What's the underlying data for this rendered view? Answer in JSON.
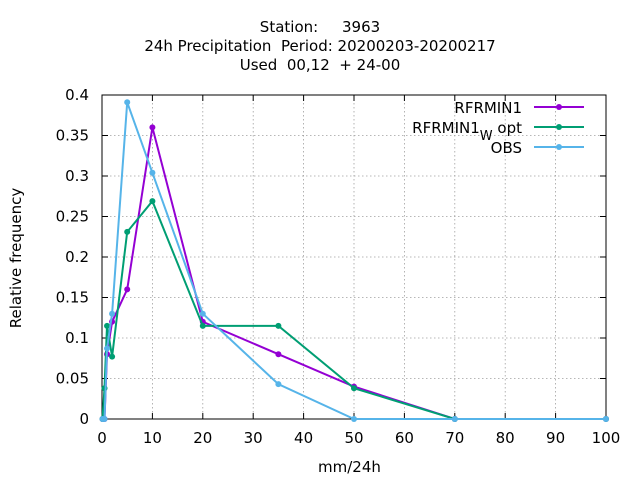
{
  "title_lines": [
    "Station:     3963",
    "24h Precipitation  Period: 20200203-20200217",
    "Used  00,12  + 24-00"
  ],
  "chart_data": {
    "type": "line",
    "xlabel": "mm/24h",
    "ylabel": "Relative frequency",
    "xlim": [
      0,
      100
    ],
    "ylim": [
      0,
      0.4
    ],
    "x_ticks": [
      0,
      10,
      20,
      30,
      40,
      50,
      60,
      70,
      80,
      90,
      100
    ],
    "y_ticks": [
      0,
      0.05,
      0.1,
      0.15,
      0.2,
      0.25,
      0.3,
      0.35,
      0.4
    ],
    "x_tick_labels": [
      "0",
      "10",
      "20",
      "30",
      "40",
      "50",
      "60",
      "70",
      "80",
      "90",
      "100"
    ],
    "y_tick_labels": [
      "0",
      "0.05",
      "0.1",
      "0.15",
      "0.2",
      "0.25",
      "0.3",
      "0.35",
      "0.4"
    ],
    "grid": true,
    "legend_position": "top-right",
    "series": [
      {
        "name": "RFRMIN1",
        "color": "#9400d3",
        "x": [
          0.1,
          0.5,
          1,
          2,
          5,
          10,
          20,
          35,
          50,
          70,
          100
        ],
        "y": [
          0.0,
          0.0,
          0.08,
          0.12,
          0.16,
          0.36,
          0.12,
          0.08,
          0.04,
          0.0,
          0.0
        ]
      },
      {
        "name": "RFRMIN1",
        "name_subscript": "W",
        "name_suffix": "opt",
        "color": "#009e73",
        "x": [
          0.1,
          0.5,
          1,
          2,
          5,
          10,
          20,
          35,
          50,
          70,
          100
        ],
        "y": [
          0.0,
          0.038,
          0.115,
          0.077,
          0.231,
          0.269,
          0.115,
          0.115,
          0.038,
          0.0,
          0.0
        ]
      },
      {
        "name": "OBS",
        "color": "#56b4e9",
        "x": [
          0.1,
          0.5,
          1,
          2,
          5,
          10,
          20,
          35,
          50,
          70,
          100
        ],
        "y": [
          0.0,
          0.0,
          0.087,
          0.13,
          0.391,
          0.304,
          0.13,
          0.043,
          0.0,
          0.0,
          0.0
        ]
      }
    ]
  }
}
